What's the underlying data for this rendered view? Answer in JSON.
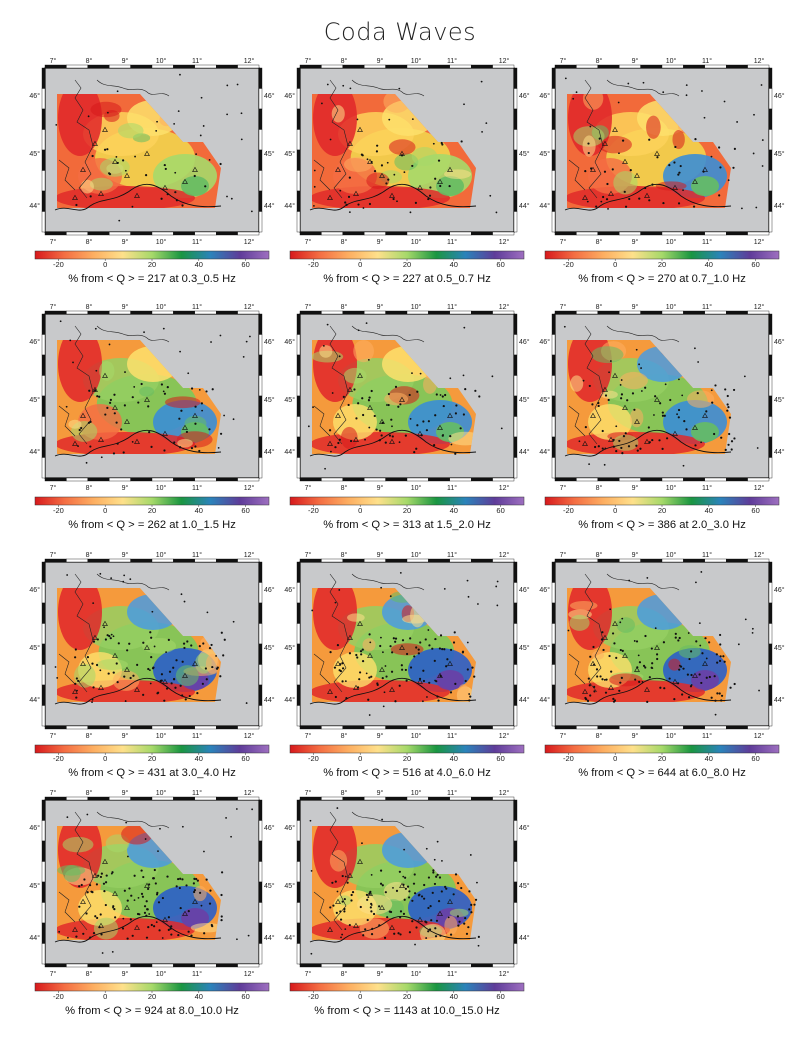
{
  "title": "Coda Waves",
  "map": {
    "lon_ticks": [
      "7°",
      "8°",
      "9°",
      "10°",
      "11°",
      "12°"
    ],
    "lat_ticks": [
      "46°",
      "45°",
      "44°"
    ]
  },
  "colorbar": {
    "ticks": [
      "-20",
      "0",
      "20",
      "40",
      "60"
    ],
    "colors": [
      "#d7191c",
      "#f46d43",
      "#fdae61",
      "#fee08b",
      "#a6d96a",
      "#1a9641",
      "#2b83ba",
      "#5e3c99",
      "#9e6fc0"
    ]
  },
  "panels": [
    {
      "caption": "% from < Q > = 217 at 0.3_0.5 Hz",
      "mean_q": 217,
      "band_hz": "0.3_0.5"
    },
    {
      "caption": "% from < Q > = 227 at 0.5_0.7 Hz",
      "mean_q": 227,
      "band_hz": "0.5_0.7"
    },
    {
      "caption": "% from < Q > = 270 at 0.7_1.0 Hz",
      "mean_q": 270,
      "band_hz": "0.7_1.0"
    },
    {
      "caption": "% from < Q > = 262 at 1.0_1.5 Hz",
      "mean_q": 262,
      "band_hz": "1.0_1.5"
    },
    {
      "caption": "% from < Q > = 313 at 1.5_2.0 Hz",
      "mean_q": 313,
      "band_hz": "1.5_2.0"
    },
    {
      "caption": "% from < Q > = 386 at 2.0_3.0 Hz",
      "mean_q": 386,
      "band_hz": "2.0_3.0"
    },
    {
      "caption": "% from < Q > = 431 at 3.0_4.0 Hz",
      "mean_q": 431,
      "band_hz": "3.0_4.0"
    },
    {
      "caption": "% from < Q > = 516 at 4.0_6.0 Hz",
      "mean_q": 516,
      "band_hz": "4.0_6.0"
    },
    {
      "caption": "% from < Q > = 644 at 6.0_8.0 Hz",
      "mean_q": 644,
      "band_hz": "6.0_8.0"
    },
    {
      "caption": "% from < Q > = 924 at 8.0_10.0 Hz",
      "mean_q": 924,
      "band_hz": "8.0_10.0"
    },
    {
      "caption": "% from < Q > = 1143 at 10.0_15.0 Hz",
      "mean_q": 1143,
      "band_hz": "10.0_15.0"
    }
  ]
}
